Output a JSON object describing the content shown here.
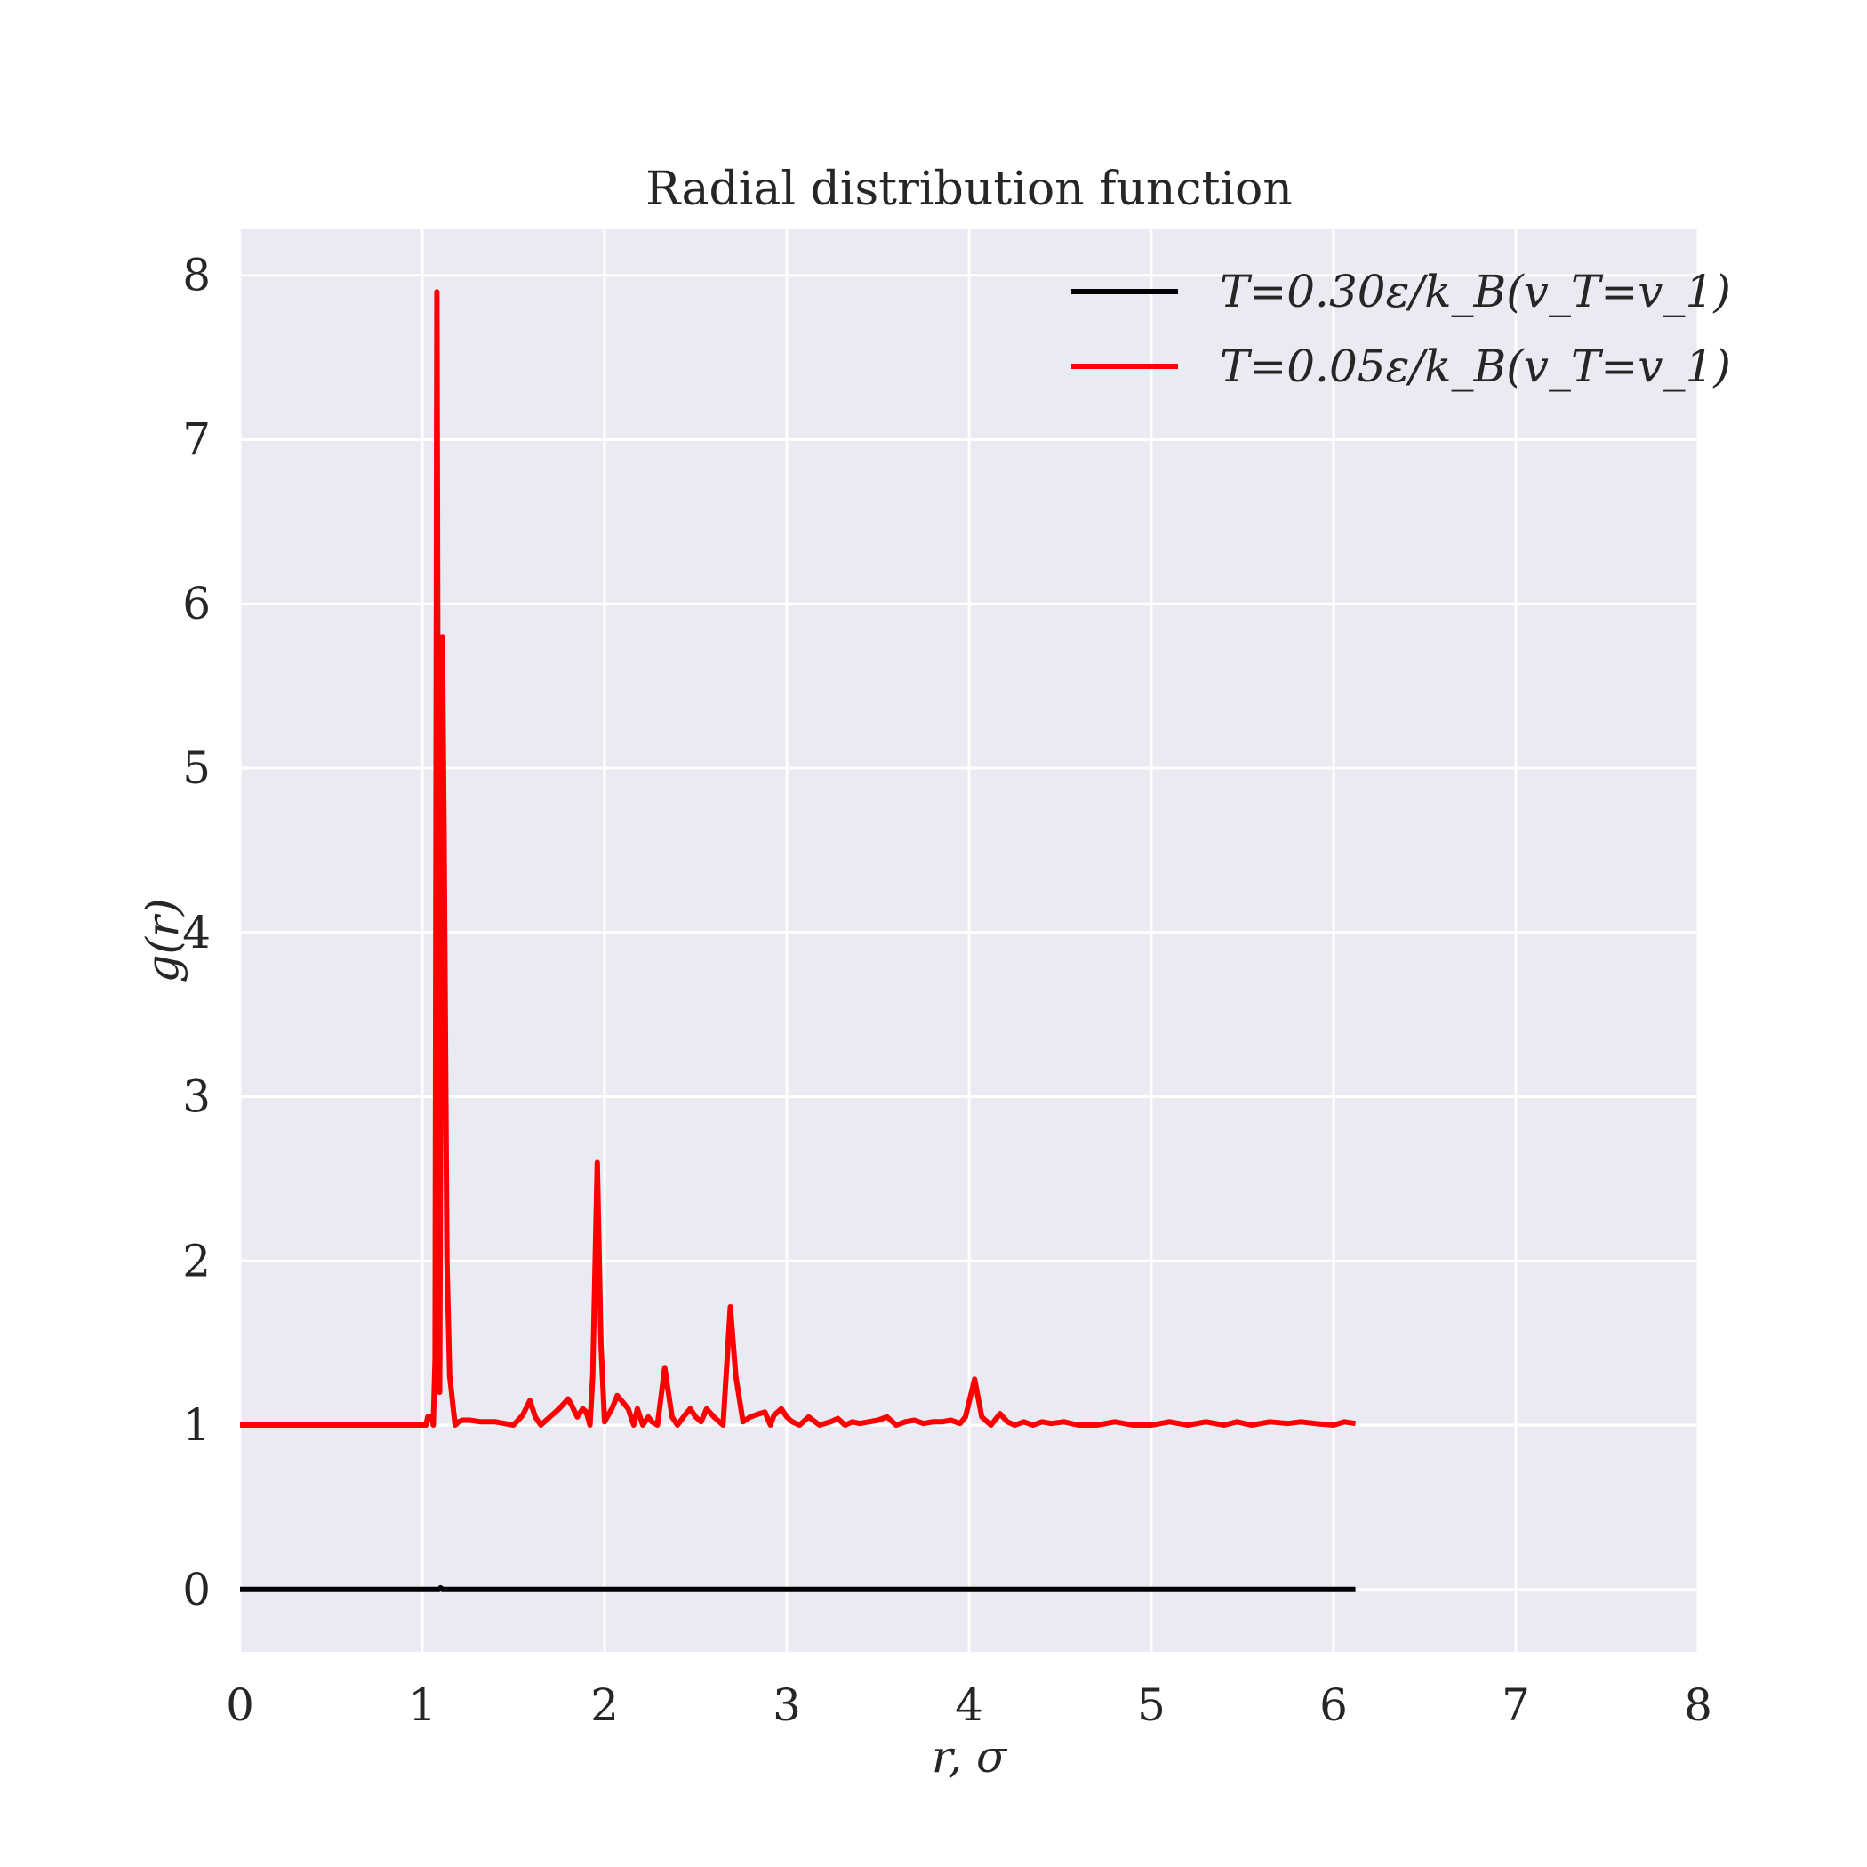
{
  "chart_data": {
    "type": "line",
    "title": "Radial distribution function",
    "xlabel": "r, σ",
    "ylabel": "g(r)",
    "xlim": [
      0,
      8
    ],
    "ylim": [
      -0.38,
      8.28
    ],
    "xticks": [
      0,
      1,
      2,
      3,
      4,
      5,
      6,
      7,
      8
    ],
    "yticks": [
      0,
      1,
      2,
      3,
      4,
      5,
      6,
      7,
      8
    ],
    "grid": true,
    "legend_position": "top-right",
    "background_color": "#eaeaf2",
    "series": [
      {
        "name": "T=0.30ε/k_B(v_T=v_1)",
        "color": "#000000",
        "x": [
          0,
          1.05,
          1.09,
          1.1,
          1.11,
          1.15,
          6.12
        ],
        "y": [
          0,
          0,
          0,
          0.01,
          0,
          0,
          0
        ]
      },
      {
        "name": "T=0.05ε/k_B(v_T=v_1)",
        "color": "#ff0000",
        "x": [
          0,
          1.02,
          1.03,
          1.05,
          1.06,
          1.07,
          1.08,
          1.095,
          1.11,
          1.12,
          1.135,
          1.15,
          1.18,
          1.2,
          1.22,
          1.26,
          1.32,
          1.4,
          1.45,
          1.5,
          1.55,
          1.59,
          1.62,
          1.65,
          1.7,
          1.75,
          1.8,
          1.82,
          1.85,
          1.88,
          1.9,
          1.92,
          1.935,
          1.96,
          1.98,
          2.0,
          2.04,
          2.07,
          2.1,
          2.13,
          2.16,
          2.18,
          2.21,
          2.24,
          2.26,
          2.29,
          2.33,
          2.37,
          2.4,
          2.44,
          2.47,
          2.5,
          2.53,
          2.56,
          2.6,
          2.65,
          2.69,
          2.72,
          2.76,
          2.8,
          2.85,
          2.88,
          2.91,
          2.93,
          2.97,
          3.0,
          3.03,
          3.07,
          3.12,
          3.18,
          3.24,
          3.28,
          3.32,
          3.36,
          3.4,
          3.45,
          3.5,
          3.55,
          3.6,
          3.65,
          3.7,
          3.75,
          3.8,
          3.85,
          3.9,
          3.95,
          3.98,
          4.03,
          4.07,
          4.12,
          4.17,
          4.21,
          4.25,
          4.3,
          4.35,
          4.4,
          4.45,
          4.52,
          4.6,
          4.7,
          4.8,
          4.9,
          5.0,
          5.1,
          5.2,
          5.3,
          5.4,
          5.47,
          5.55,
          5.65,
          5.75,
          5.82,
          5.9,
          6.0,
          6.06,
          6.12
        ],
        "y": [
          1,
          1,
          1.05,
          1.05,
          1.0,
          1.4,
          7.9,
          1.2,
          5.8,
          4.5,
          2.0,
          1.3,
          1.0,
          1.02,
          1.03,
          1.03,
          1.02,
          1.02,
          1.01,
          1.0,
          1.06,
          1.15,
          1.05,
          1.0,
          1.05,
          1.1,
          1.16,
          1.12,
          1.05,
          1.1,
          1.08,
          1.0,
          1.3,
          2.6,
          1.5,
          1.02,
          1.1,
          1.18,
          1.14,
          1.1,
          1.0,
          1.1,
          1.0,
          1.05,
          1.02,
          1.0,
          1.35,
          1.05,
          1.0,
          1.06,
          1.1,
          1.05,
          1.02,
          1.1,
          1.05,
          1.0,
          1.72,
          1.3,
          1.02,
          1.05,
          1.07,
          1.08,
          1.0,
          1.06,
          1.1,
          1.05,
          1.02,
          1.0,
          1.05,
          1.0,
          1.02,
          1.04,
          1.0,
          1.02,
          1.01,
          1.02,
          1.03,
          1.05,
          1.0,
          1.02,
          1.03,
          1.01,
          1.02,
          1.02,
          1.03,
          1.01,
          1.05,
          1.28,
          1.05,
          1.0,
          1.07,
          1.02,
          1.0,
          1.02,
          1.0,
          1.02,
          1.01,
          1.02,
          1.0,
          1.0,
          1.02,
          1.0,
          1.0,
          1.02,
          1.0,
          1.02,
          1.0,
          1.02,
          1.0,
          1.02,
          1.01,
          1.02,
          1.01,
          1.0,
          1.02,
          1.01
        ]
      }
    ]
  }
}
